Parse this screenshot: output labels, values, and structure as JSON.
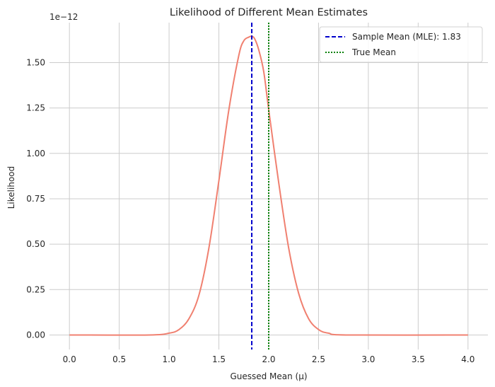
{
  "chart_data": {
    "type": "line",
    "title": "Likelihood of Different Mean Estimates",
    "xlabel": "Guessed Mean (μ)",
    "ylabel": "Likelihood",
    "y_scale_label": "1e−12",
    "xlim": [
      -0.2,
      4.2
    ],
    "ylim": [
      -0.08,
      1.72
    ],
    "x_ticks": [
      "0.0",
      "0.5",
      "1.0",
      "1.5",
      "2.0",
      "2.5",
      "3.0",
      "3.5",
      "4.0"
    ],
    "y_ticks": [
      "0.00",
      "0.25",
      "0.50",
      "0.75",
      "1.00",
      "1.25",
      "1.50"
    ],
    "grid": true,
    "legend_position": "top-right",
    "series": [
      {
        "kind": "curve",
        "color": "#f08070",
        "x": [
          0.0,
          0.8,
          1.0,
          1.1,
          1.2,
          1.3,
          1.4,
          1.5,
          1.6,
          1.7,
          1.75,
          1.8,
          1.83,
          1.86,
          1.9,
          1.95,
          2.0,
          2.1,
          2.2,
          2.3,
          2.4,
          2.5,
          2.6,
          2.8,
          4.0
        ],
        "y": [
          0.0,
          0.0,
          0.01,
          0.03,
          0.09,
          0.22,
          0.48,
          0.85,
          1.24,
          1.54,
          1.62,
          1.64,
          1.645,
          1.63,
          1.57,
          1.45,
          1.24,
          0.84,
          0.48,
          0.23,
          0.09,
          0.03,
          0.01,
          0.0,
          0.0
        ]
      },
      {
        "kind": "vline",
        "name": "Sample Mean (MLE): 1.83",
        "x": 1.83,
        "color": "#0000cc",
        "style": "dashed"
      },
      {
        "kind": "vline",
        "name": "True Mean",
        "x": 2.0,
        "color": "#008000",
        "style": "dotted"
      }
    ]
  }
}
